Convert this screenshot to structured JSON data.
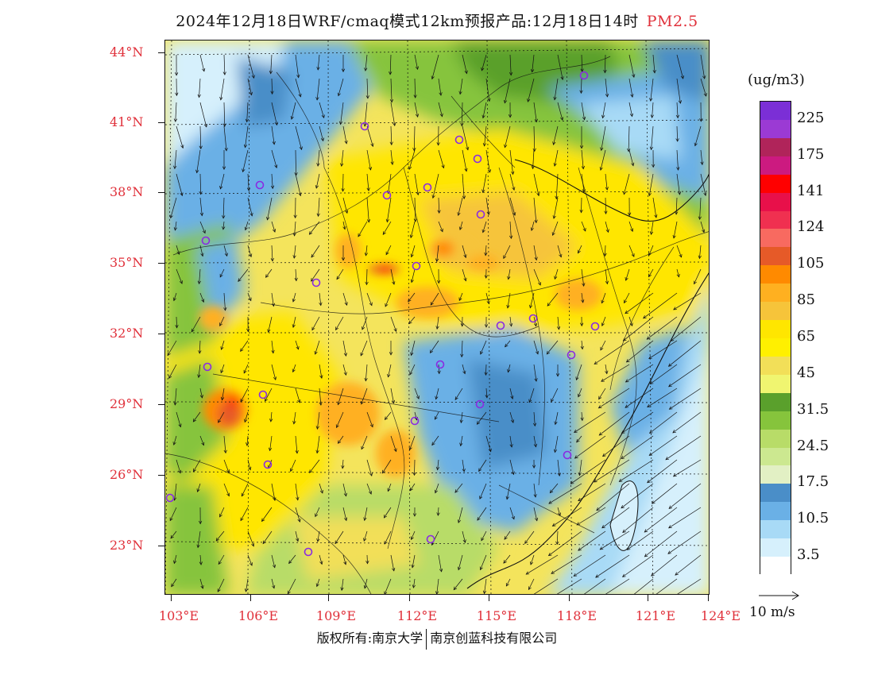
{
  "header": {
    "title": "2024年12月18日WRF/cmaq模式12km预报产品:12月18日14时",
    "pollutant": "PM2.5"
  },
  "map": {
    "lat_labels": [
      "44°N",
      "41°N",
      "38°N",
      "35°N",
      "32°N",
      "29°N",
      "26°N",
      "23°N"
    ],
    "lon_labels": [
      "103°E",
      "106°E",
      "109°E",
      "112°E",
      "115°E",
      "118°E",
      "121°E",
      "124°E"
    ],
    "lat_range": [
      21.0,
      44.5
    ],
    "lon_range": [
      103.0,
      124.0
    ]
  },
  "legend": {
    "unit": "(ug/m3)",
    "levels": [
      {
        "label": "225",
        "color": "#7b2fd6"
      },
      {
        "label": "",
        "color": "#9b3ad4"
      },
      {
        "label": "175",
        "color": "#b0245a"
      },
      {
        "label": "",
        "color": "#cc1a80"
      },
      {
        "label": "141",
        "color": "#ff0000"
      },
      {
        "label": "",
        "color": "#e8104a"
      },
      {
        "label": "124",
        "color": "#f03050"
      },
      {
        "label": "",
        "color": "#f86a60"
      },
      {
        "label": "105",
        "color": "#e65a28"
      },
      {
        "label": "",
        "color": "#ff8a00"
      },
      {
        "label": "85",
        "color": "#ffb020"
      },
      {
        "label": "",
        "color": "#f6c43a"
      },
      {
        "label": "65",
        "color": "#ffe600"
      },
      {
        "label": "",
        "color": "#fff000"
      },
      {
        "label": "45",
        "color": "#f2df58"
      },
      {
        "label": "",
        "color": "#f0f570"
      },
      {
        "label": "31.5",
        "color": "#5aa02c"
      },
      {
        "label": "",
        "color": "#86c43c"
      },
      {
        "label": "24.5",
        "color": "#b8dc68"
      },
      {
        "label": "",
        "color": "#cce890"
      },
      {
        "label": "17.5",
        "color": "#e2f0c4"
      },
      {
        "label": "",
        "color": "#4a8ec8"
      },
      {
        "label": "10.5",
        "color": "#6ab0e6"
      },
      {
        "label": "",
        "color": "#a8daf6"
      },
      {
        "label": "3.5",
        "color": "#d6f0fc"
      },
      {
        "label": "",
        "color": "#ffffff"
      }
    ]
  },
  "wind_reference": {
    "label": "10 m/s"
  },
  "footer": {
    "copyright_left": "版权所有:南京大学",
    "copyright_right": "南京创蓝科技有限公司"
  }
}
